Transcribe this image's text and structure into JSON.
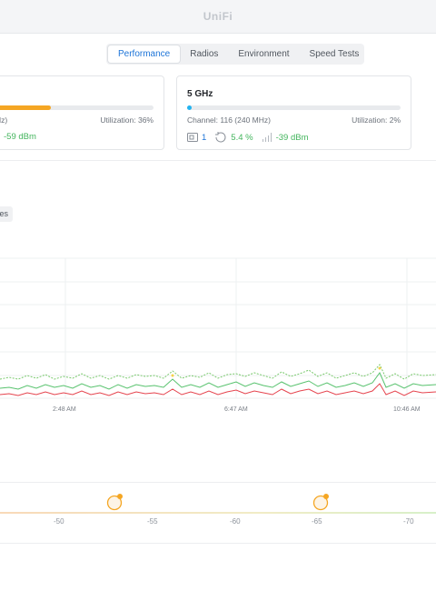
{
  "app": {
    "title": "UniFi"
  },
  "tabs": [
    {
      "label": "Performance",
      "active": true
    },
    {
      "label": "Radios",
      "active": false
    },
    {
      "label": "Environment",
      "active": false
    },
    {
      "label": "Speed Tests",
      "active": false
    }
  ],
  "radio_24": {
    "channel_text": "Hz)",
    "utilization_text": "Utilization:  36%",
    "utilization": 36,
    "signal": "-59 dBm",
    "bar_color": "#f5a623"
  },
  "radio_5": {
    "title": "5 GHz",
    "channel_text": "Channel: 116 (240 MHz)",
    "utilization_text": "Utilization:  2%",
    "utilization": 2,
    "clients": "1",
    "retries": "5.4 %",
    "signal": "-39 dBm",
    "bar_color": "#22b3f0"
  },
  "filter_chip": "es",
  "chart": {
    "x_labels": [
      "2:48 AM",
      "6:47 AM",
      "10:46 AM"
    ],
    "colors": {
      "red": "#e5434d",
      "green": "#57c26d",
      "dotted": "#79c96c",
      "highlight": "#f5d34a"
    }
  },
  "signal_scale": {
    "labels": [
      "-50",
      "-55",
      "-60",
      "-65",
      "-70"
    ],
    "marker_color": "#f5a623"
  }
}
